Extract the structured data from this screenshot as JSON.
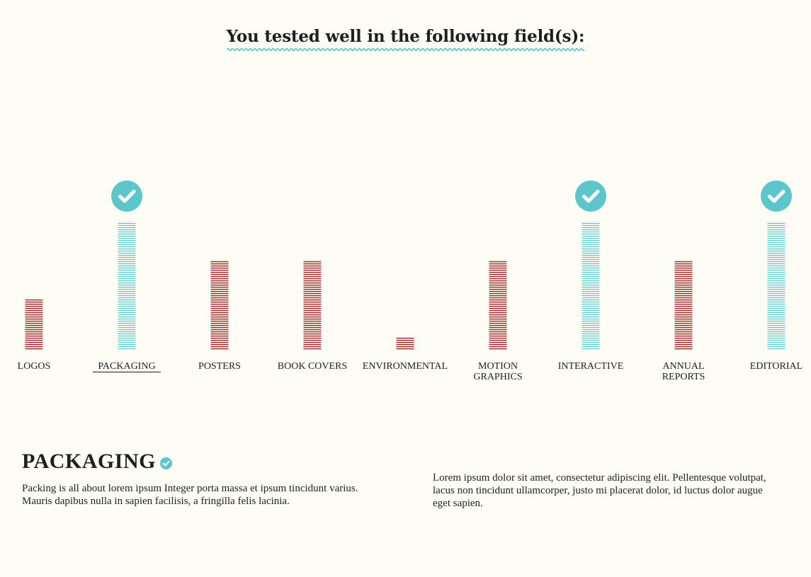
{
  "heading": "You tested well in the following field(s):",
  "colors": {
    "highlight": "#5cc6cb",
    "normal": "#9a2a2a",
    "background": "#fdfdf5",
    "text": "#1f1f1f"
  },
  "chart_data": {
    "type": "bar",
    "categories": [
      [
        "LOGOS"
      ],
      [
        "PACKAGING"
      ],
      [
        "POSTERS"
      ],
      [
        "BOOK COVERS"
      ],
      [
        "ENVIRONMENTAL"
      ],
      [
        "MOTION",
        "GRAPHICS"
      ],
      [
        "INTERACTIVE"
      ],
      [
        "ANNUAL",
        "REPORTS"
      ],
      [
        "EDITORIAL"
      ]
    ],
    "values": [
      40,
      100,
      70,
      70,
      10,
      70,
      100,
      70,
      100
    ],
    "passed": [
      false,
      true,
      false,
      false,
      false,
      false,
      true,
      false,
      true
    ],
    "selected_index": 1,
    "ylim": [
      0,
      100
    ],
    "grid": false,
    "legend": "none"
  },
  "detail": {
    "title": "PACKAGING",
    "left_text": "Packing is all about lorem ipsum Integer porta massa et ipsum tincidunt varius. Mauris dapibus nulla in sapien facilisis, a fringilla felis lacinia.",
    "right_text": "Lorem ipsum dolor sit amet, consectetur adipiscing elit. Pellentesque volutpat, lacus non tincidunt ullamcorper, justo mi placerat dolor, id luctus dolor augue eget sapien."
  }
}
